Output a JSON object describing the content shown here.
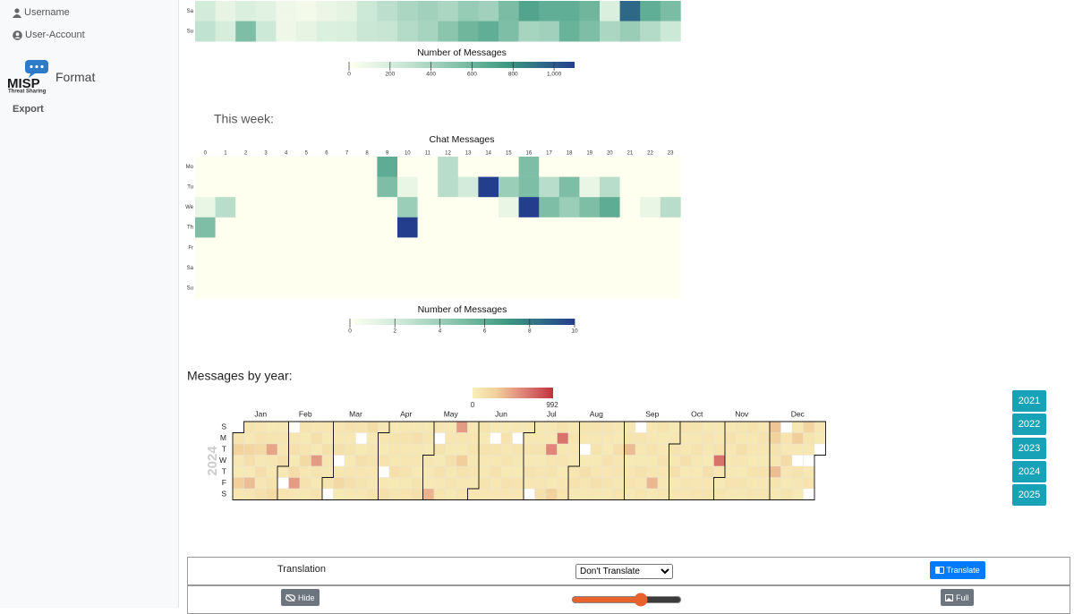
{
  "sidebar": {
    "items": [
      "Username",
      "User-Account"
    ],
    "logo": {
      "name": "MISP",
      "tagline": "Threat Sharing"
    },
    "format": "Format",
    "export": "Export"
  },
  "top_heatmap": {
    "type": "heatmap",
    "rows": [
      "Sa",
      "Su"
    ],
    "values": [
      [
        220,
        120,
        180,
        140,
        80,
        60,
        100,
        130,
        250,
        320,
        380,
        420,
        380,
        460,
        420,
        560,
        700,
        650,
        650,
        600,
        180,
        950,
        650,
        560
      ],
      [
        300,
        200,
        550,
        250,
        80,
        120,
        170,
        180,
        260,
        280,
        350,
        400,
        500,
        600,
        650,
        550,
        400,
        420,
        620,
        550,
        380,
        450,
        350,
        250
      ]
    ],
    "colorbar": {
      "label": "Number of Messages",
      "lim": [
        0,
        1100
      ],
      "ticks": [
        0,
        200,
        400,
        600,
        800,
        {
          "value": 1000,
          "label": "1,000"
        }
      ]
    }
  },
  "this_week": {
    "heading": "This week:",
    "type": "heatmap",
    "title": "Chat Messages",
    "columns": [
      0,
      1,
      2,
      3,
      4,
      5,
      6,
      7,
      8,
      9,
      10,
      11,
      12,
      13,
      14,
      15,
      16,
      17,
      18,
      19,
      20,
      21,
      22,
      23
    ],
    "rows": [
      "Mo",
      "Tu",
      "We",
      "Th",
      "Fr",
      "Sa",
      "Su"
    ],
    "values": [
      [
        0,
        0,
        0,
        0,
        0,
        0,
        0,
        0,
        0,
        6,
        0,
        0,
        3,
        0,
        0,
        0,
        5,
        0,
        0,
        0,
        0,
        0,
        0,
        0
      ],
      [
        0,
        0,
        0,
        0,
        0,
        0,
        0,
        0,
        0,
        5,
        1,
        0,
        3,
        2,
        10,
        4,
        5,
        3,
        5,
        1,
        3,
        0,
        0,
        0
      ],
      [
        1,
        3,
        0,
        0,
        0,
        0,
        0,
        0,
        0,
        0,
        4,
        0,
        0,
        0,
        0,
        1,
        10,
        5,
        4,
        5,
        6,
        0,
        1,
        3
      ],
      [
        5,
        0,
        0,
        0,
        0,
        0,
        0,
        0,
        0,
        0,
        10,
        0,
        0,
        0,
        0,
        0,
        0,
        0,
        0,
        0,
        0,
        0,
        0,
        0
      ],
      [
        0,
        0,
        0,
        0,
        0,
        0,
        0,
        0,
        0,
        0,
        0,
        0,
        0,
        0,
        0,
        0,
        0,
        0,
        0,
        0,
        0,
        0,
        0,
        0
      ],
      [
        0,
        0,
        0,
        0,
        0,
        0,
        0,
        0,
        0,
        0,
        0,
        0,
        0,
        0,
        0,
        0,
        0,
        0,
        0,
        0,
        0,
        0,
        0,
        0
      ],
      [
        0,
        0,
        0,
        0,
        0,
        0,
        0,
        0,
        0,
        0,
        0,
        0,
        0,
        0,
        0,
        0,
        0,
        0,
        0,
        0,
        0,
        0,
        0,
        0
      ]
    ],
    "colorbar": {
      "label": "Number of Messages",
      "lim": [
        0,
        10
      ],
      "ticks": [
        0,
        2,
        4,
        6,
        8,
        10
      ]
    }
  },
  "messages_by_year": {
    "heading": "Messages by year:",
    "type": "calendar",
    "year": 2024,
    "legend": {
      "lim": [
        0,
        992
      ]
    },
    "months": [
      "Jan",
      "Feb",
      "Mar",
      "Apr",
      "May",
      "Jun",
      "Jul",
      "Aug",
      "Sep",
      "Oct",
      "Nov",
      "Dec"
    ],
    "weekdays": [
      "S",
      "M",
      "T",
      "W",
      "T",
      "F",
      "S"
    ],
    "values": [
      [
        120,
        260,
        80,
        60,
        300,
        90,
        110,
        70,
        240,
        150,
        60,
        380,
        100,
        90,
        130,
        210,
        70,
        160,
        90,
        140,
        60,
        110,
        480,
        90,
        70,
        130,
        200,
        60,
        100,
        90,
        150
      ],
      [
        80,
        null,
        120,
        null,
        90,
        140,
        60,
        170,
        520,
        90,
        110,
        60,
        100,
        210,
        80,
        130,
        70,
        90,
        150,
        60,
        520,
        110,
        80,
        120,
        90,
        60,
        140,
        100,
        80
      ],
      [
        110,
        null,
        90,
        70,
        140,
        null,
        90,
        220,
        60,
        130,
        80,
        110,
        60,
        90,
        150,
        70,
        120,
        null,
        60,
        140,
        90,
        110,
        80,
        180,
        60,
        100,
        130,
        90,
        70,
        120,
        80
      ],
      [
        90,
        60,
        120,
        null,
        80,
        140,
        60,
        110,
        90,
        70,
        150,
        60,
        100,
        80,
        130,
        70,
        90,
        110,
        60,
        120,
        80,
        140,
        70,
        90,
        60,
        110,
        150,
        80,
        100,
        60
      ],
      [
        100,
        80,
        60,
        420,
        90,
        null,
        110,
        60,
        130,
        80,
        120,
        70,
        90,
        60,
        150,
        80,
        110,
        70,
        520,
        90,
        60,
        300,
        130,
        80,
        110,
        60,
        90,
        120,
        70,
        100,
        80
      ],
      [
        90,
        110,
        60,
        130,
        80,
        70,
        120,
        90,
        60,
        null,
        110,
        80,
        130,
        70,
        90,
        60,
        120,
        80,
        110,
        60,
        130,
        90,
        70,
        null,
        100,
        80,
        60,
        120,
        90,
        70
      ],
      [
        80,
        110,
        60,
        130,
        90,
        null,
        70,
        80,
        120,
        60,
        100,
        90,
        140,
        70,
        80,
        610,
        90,
        110,
        60,
        280,
        130,
        700,
        80,
        100,
        60,
        90,
        120,
        70,
        110,
        80,
        60
      ],
      [
        90,
        130,
        70,
        110,
        80,
        null,
        60,
        140,
        90,
        70,
        120,
        80,
        110,
        60,
        90,
        150,
        70,
        100,
        80,
        60,
        130,
        90,
        110,
        70,
        80,
        60,
        140,
        90,
        100,
        70,
        120
      ],
      [
        80,
        110,
        380,
        60,
        90,
        120,
        70,
        null,
        100,
        80,
        60,
        130,
        90,
        110,
        70,
        80,
        120,
        60,
        90,
        400,
        70,
        110,
        60,
        80,
        130,
        90,
        70,
        100,
        60,
        80
      ],
      [
        110,
        80,
        140,
        60,
        90,
        120,
        70,
        80,
        150,
        60,
        100,
        90,
        110,
        70,
        130,
        80,
        60,
        90,
        120,
        70,
        100,
        80,
        60,
        140,
        90,
        110,
        70,
        80,
        120,
        700,
        90
      ],
      [
        60,
        110,
        80,
        130,
        70,
        90,
        60,
        120,
        80,
        100,
        70,
        140,
        90,
        60,
        110,
        80,
        130,
        70,
        90,
        60,
        120,
        80,
        100,
        70,
        110,
        90,
        60,
        130,
        80,
        100
      ],
      [
        340,
        260,
        130,
        90,
        380,
        110,
        70,
        null,
        120,
        80,
        200,
        90,
        60,
        110,
        80,
        300,
        70,
        null,
        130,
        90,
        60,
        250,
        110,
        80,
        null,
        70,
        120,
        null,
        90,
        60,
        null
      ]
    ],
    "year_buttons": [
      2021,
      2022,
      2023,
      2024,
      2025
    ]
  },
  "translation": {
    "label": "Translation",
    "select": "Don't Translate",
    "button": "Translate",
    "hide": "Hide",
    "full": "Full",
    "slider_value": 65
  }
}
